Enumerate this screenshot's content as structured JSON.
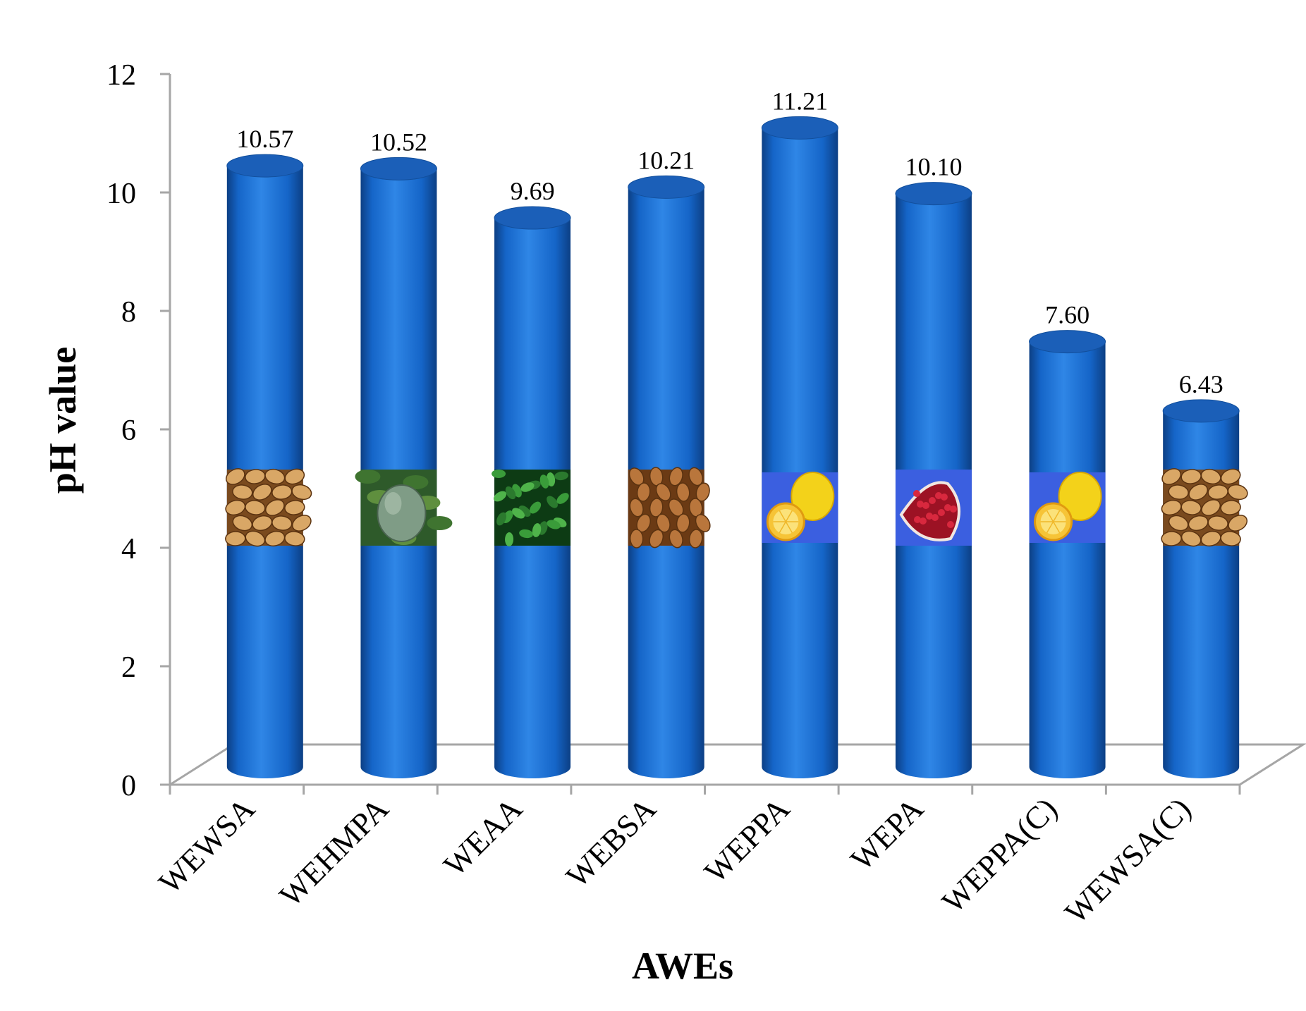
{
  "chart_data": {
    "type": "bar",
    "title": "",
    "xlabel": "AWEs",
    "ylabel": "pH value",
    "ylim": [
      0,
      12
    ],
    "yticks": [
      0,
      2,
      4,
      6,
      8,
      10,
      12
    ],
    "ytick_labels": [
      "0",
      "2",
      "4",
      "6",
      "8",
      "10",
      "12"
    ],
    "categories": [
      "WEWSA",
      "WEHMPA",
      "WEAA",
      "WEBSA",
      "WEPPA",
      "WEPA",
      "WEPPA(C)",
      "WEWSA(C)"
    ],
    "values": [
      10.57,
      10.52,
      9.69,
      10.21,
      11.21,
      10.1,
      7.6,
      6.43
    ],
    "value_labels": [
      "10.57",
      "10.52",
      "9.69",
      "10.21",
      "11.21",
      "10.10",
      "7.60",
      "6.43"
    ],
    "bar_images": [
      "nuts-icon",
      "melon-icon",
      "leaves-icon",
      "almonds-icon",
      "lemon-icon",
      "pomegranate-icon",
      "lemon-icon",
      "nuts-icon"
    ],
    "bar_style": "3d-cylinder",
    "legend": "none",
    "grid": false,
    "colors": {
      "bar": "#1565c8",
      "bar_dark": "#0c3f84",
      "bar_light": "#2f86e6",
      "bar_top": "#1b5fb8",
      "axis": "#a6a6a6"
    }
  }
}
